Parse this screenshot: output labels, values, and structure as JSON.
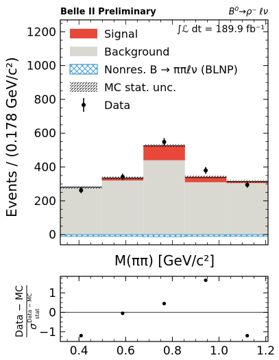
{
  "chart_data": {
    "type": "bar",
    "header": {
      "experiment": "Belle II Preliminary",
      "process_main": "B",
      "process_sup": "0",
      "process_rest": "→ρ⁻ ℓν",
      "luminosity": "∫ℒ dt = 189.9 fb⁻¹"
    },
    "main": {
      "ylabel": "Events / (0.178 GeV/c²)",
      "xlabel": "M(ππ) [GeV/c²]",
      "ylim": [
        -60,
        1270
      ],
      "xlim": [
        0.32,
        1.21
      ],
      "yticks": [
        0,
        200,
        400,
        600,
        800,
        1000,
        1200
      ],
      "bin_edges": [
        0.32,
        0.498,
        0.676,
        0.854,
        1.032,
        1.21
      ],
      "series": [
        {
          "name": "Background",
          "color": "#d9d9d2",
          "values": [
            280,
            320,
            440,
            310,
            305
          ]
        },
        {
          "name": "Signal",
          "color": "#e8483a",
          "values": [
            0,
            15,
            87,
            30,
            10
          ]
        },
        {
          "name": "Nonres. B → ππℓν (BLNP)",
          "color": "#3f9bd4",
          "values": [
            -10,
            -10,
            -12,
            -10,
            -10
          ]
        }
      ],
      "data": {
        "name": "Data",
        "x": [
          0.409,
          0.587,
          0.765,
          0.943,
          1.121
        ],
        "y": [
          262,
          342,
          548,
          380,
          295
        ],
        "yerr": [
          17,
          19,
          23,
          20,
          17
        ]
      },
      "legend": {
        "position": "top-left",
        "entries": [
          {
            "key": "signal",
            "label": "Signal"
          },
          {
            "key": "background",
            "label": "Background"
          },
          {
            "key": "nonres",
            "label": "Nonres. B → ππℓν (BLNP)"
          },
          {
            "key": "mcunc",
            "label": "MC stat. unc."
          },
          {
            "key": "data",
            "label": "Data"
          }
        ]
      }
    },
    "ratio": {
      "ylabel_top": "Data − MC",
      "ylabel_bottom": "σ",
      "ylabel_sup": "Data − MC",
      "ylabel_sub": "stat",
      "ylim": [
        -1.5,
        1.85
      ],
      "yticks": [
        -1,
        0,
        1
      ],
      "xticks": [
        0.4,
        0.6,
        0.8,
        1.0,
        1.2
      ],
      "xtick_labels": [
        "0.4",
        "0.6",
        "0.8",
        "1.0",
        "1.2"
      ],
      "x": [
        0.409,
        0.587,
        0.765,
        0.943,
        1.121
      ],
      "y": [
        -1.2,
        -0.05,
        0.45,
        1.65,
        -1.2
      ]
    }
  }
}
